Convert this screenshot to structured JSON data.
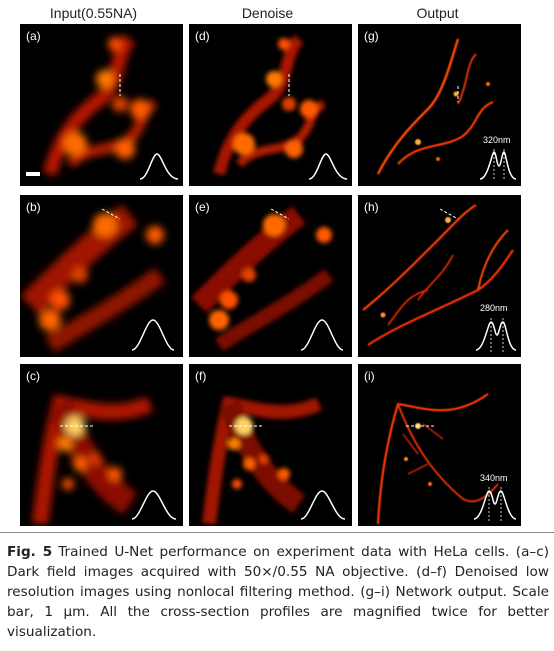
{
  "columns": [
    "Input(0.55NA)",
    "Denoise",
    "Output"
  ],
  "panels": [
    {
      "id": "a",
      "label": "(a)"
    },
    {
      "id": "d",
      "label": "(d)"
    },
    {
      "id": "g",
      "label": "(g)",
      "resolution": "320nm"
    },
    {
      "id": "b",
      "label": "(b)"
    },
    {
      "id": "e",
      "label": "(e)"
    },
    {
      "id": "h",
      "label": "(h)",
      "resolution": "280nm"
    },
    {
      "id": "c",
      "label": "(c)"
    },
    {
      "id": "f",
      "label": "(f)"
    },
    {
      "id": "i",
      "label": "(i)",
      "resolution": "340nm"
    }
  ],
  "caption": {
    "fig_label": "Fig. 5",
    "text": "Trained U-Net performance on experiment data with HeLa cells. (a–c) Dark field images acquired with 50×/0.55 NA objective. (d–f) Denoised low resolution images using nonlocal filtering method. (g–i) Network output. Scale bar, 1 μm. All the cross-section profiles are magnified twice for better visualization."
  }
}
